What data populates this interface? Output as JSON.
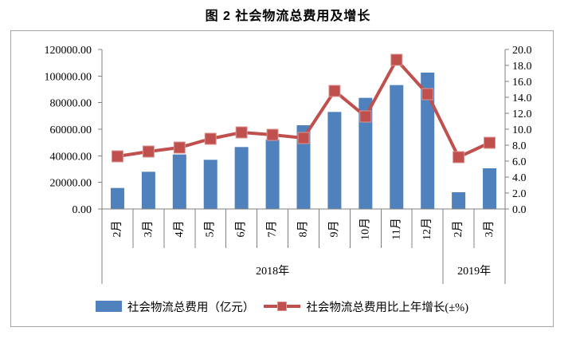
{
  "title": "图 2 社会物流总费用及增长",
  "legend": {
    "bar_label": "社会物流总费用（亿元）",
    "line_label": "社会物流总费用比上年增长(±%)"
  },
  "colors": {
    "bar": "#4F81BD",
    "line": "#C0504D",
    "marker_border": "#D99694",
    "axis": "#808080",
    "box_border": "#A6A6A6",
    "text": "#000000"
  },
  "chart_data": {
    "type": "combo-bar-line",
    "title": "图 2 社会物流总费用及增长",
    "categories": [
      "2月",
      "3月",
      "4月",
      "5月",
      "6月",
      "7月",
      "8月",
      "9月",
      "10月",
      "11月",
      "12月",
      "2月",
      "3月"
    ],
    "category_groups": [
      {
        "label": "2018年",
        "count": 11
      },
      {
        "label": "2019年",
        "count": 2
      }
    ],
    "series": [
      {
        "name": "社会物流总费用（亿元）",
        "chart_type": "bar",
        "axis": "left",
        "color": "#4F81BD",
        "values": [
          15800,
          28000,
          41000,
          37000,
          46600,
          52200,
          63000,
          73000,
          83600,
          93200,
          102600,
          12600,
          30600
        ]
      },
      {
        "name": "社会物流总费用比上年增长(±%)",
        "chart_type": "line",
        "axis": "right",
        "color": "#C0504D",
        "values": [
          6.6,
          7.2,
          7.7,
          8.8,
          9.6,
          9.3,
          8.9,
          14.8,
          11.6,
          18.7,
          14.4,
          6.5,
          8.3
        ]
      }
    ],
    "left_axis": {
      "min": 0,
      "max": 120000,
      "step": 20000,
      "tick_labels": [
        "120000.00",
        "100000.00",
        "80000.00",
        "60000.00",
        "40000.00",
        "20000.00",
        "0.00"
      ]
    },
    "right_axis": {
      "min": 0,
      "max": 20,
      "step": 2,
      "tick_labels": [
        "20.0",
        "18.0",
        "16.0",
        "14.0",
        "12.0",
        "10.0",
        "8.0",
        "6.0",
        "4.0",
        "2.0",
        "0.0"
      ]
    },
    "grid": false,
    "legend_position": "bottom"
  }
}
